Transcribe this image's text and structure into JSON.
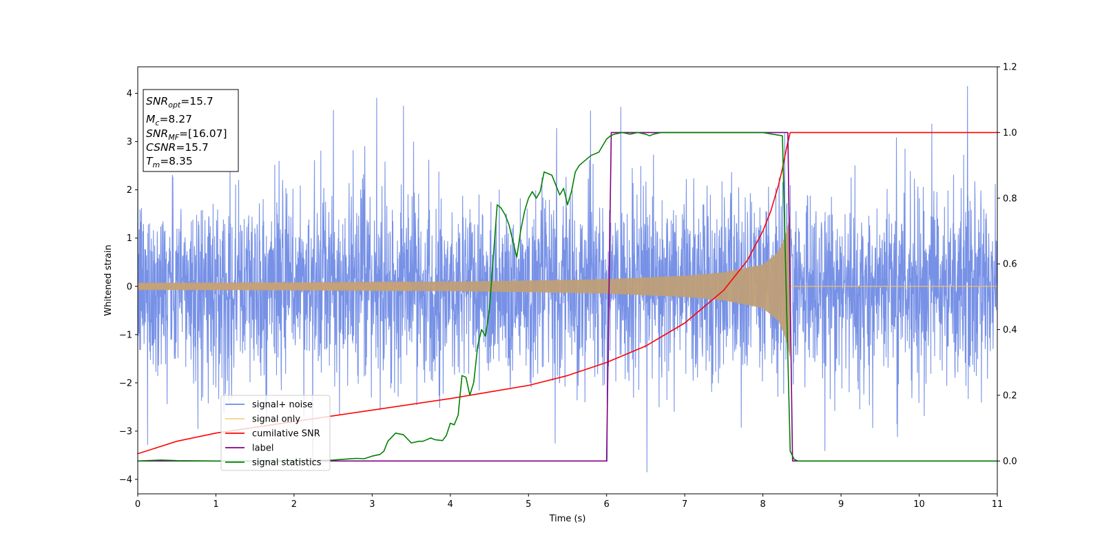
{
  "chart_data": {
    "type": "line",
    "xlabel": "Time (s)",
    "ylabel": "Whitened strain",
    "xlim": [
      0,
      11
    ],
    "ylim": [
      -4.3,
      4.55
    ],
    "y2lim": [
      -0.1,
      1.2
    ],
    "x_ticks": [
      0,
      1,
      2,
      3,
      4,
      5,
      6,
      7,
      8,
      9,
      10,
      11
    ],
    "y_ticks": [
      -4,
      -3,
      -2,
      -1,
      0,
      1,
      2,
      3,
      4
    ],
    "y_tick_labels": [
      "−4",
      "−3",
      "−2",
      "−1",
      "0",
      "1",
      "2",
      "3",
      "4"
    ],
    "y2_ticks": [
      0.0,
      0.2,
      0.4,
      0.6,
      0.8,
      1.0,
      1.2
    ],
    "y2_tick_labels": [
      "0.0",
      "0.2",
      "0.4",
      "0.6",
      "0.8",
      "1.0",
      "1.2"
    ],
    "annotation": [
      {
        "base": "SNR",
        "sub": "opt",
        "rest": "=15.7"
      },
      {
        "base": "M",
        "sub": "c",
        "rest": "=8.27"
      },
      {
        "base": "SNR",
        "sub": "MF",
        "rest": "=[16.07]"
      },
      {
        "base": "CSNR",
        "sub": "",
        "rest": "=15.7"
      },
      {
        "base": "T",
        "sub": "m",
        "rest": "=8.35"
      }
    ],
    "legend_position": "lower-left",
    "merger_time": 8.35,
    "series": [
      {
        "name": "signal+ noise",
        "color": "#6b88e4",
        "axis": "left",
        "kind": "noise",
        "description_values": {
          "typical_abs_max": 2.5,
          "peak_max": 4.15,
          "peak_min": -3.85
        }
      },
      {
        "name": "signal only",
        "color": "#f5c060",
        "axis": "left",
        "kind": "chirp",
        "envelope": {
          "x": [
            0,
            2,
            4,
            5,
            6,
            7,
            7.5,
            8,
            8.2,
            8.3,
            8.35
          ],
          "y": [
            0.07,
            0.08,
            0.1,
            0.12,
            0.15,
            0.22,
            0.29,
            0.45,
            0.72,
            1.1,
            1.5
          ]
        }
      },
      {
        "name": "cumilative SNR",
        "color": "#ff0000",
        "axis": "right",
        "x": [
          0,
          0.5,
          1,
          2,
          3,
          4,
          5,
          5.5,
          6,
          6.5,
          7,
          7.5,
          7.8,
          8.0,
          8.1,
          8.2,
          8.25,
          8.3,
          8.35,
          11
        ],
        "y": [
          0.022,
          0.06,
          0.085,
          0.12,
          0.155,
          0.19,
          0.23,
          0.26,
          0.3,
          0.35,
          0.42,
          0.52,
          0.61,
          0.7,
          0.76,
          0.84,
          0.89,
          0.95,
          1.0,
          1.0
        ]
      },
      {
        "name": "label",
        "color": "#800080",
        "axis": "right",
        "x": [
          0,
          6.0,
          6.06,
          8.32,
          8.38,
          11
        ],
        "y": [
          0,
          0,
          1,
          1,
          0,
          0
        ]
      },
      {
        "name": "signal statistics",
        "color": "#008000",
        "axis": "right",
        "x": [
          0,
          0.3,
          0.5,
          1,
          2,
          2.5,
          2.8,
          2.9,
          3.0,
          3.1,
          3.15,
          3.2,
          3.3,
          3.4,
          3.5,
          3.6,
          3.65,
          3.7,
          3.75,
          3.8,
          3.9,
          3.95,
          4.0,
          4.05,
          4.1,
          4.15,
          4.2,
          4.25,
          4.3,
          4.35,
          4.4,
          4.45,
          4.5,
          4.55,
          4.6,
          4.65,
          4.7,
          4.75,
          4.85,
          4.9,
          4.95,
          5.0,
          5.05,
          5.1,
          5.15,
          5.2,
          5.3,
          5.35,
          5.4,
          5.45,
          5.5,
          5.55,
          5.6,
          5.65,
          5.7,
          5.8,
          5.9,
          6.0,
          6.05,
          6.1,
          6.2,
          6.3,
          6.4,
          6.5,
          6.55,
          6.6,
          6.7,
          6.8,
          7.0,
          7.5,
          8.0,
          8.25,
          8.3,
          8.35,
          8.4,
          8.45,
          8.5,
          11
        ],
        "y": [
          0,
          0.003,
          0.001,
          0,
          0,
          0.003,
          0.008,
          0.007,
          0.015,
          0.02,
          0.03,
          0.06,
          0.085,
          0.08,
          0.055,
          0.06,
          0.06,
          0.065,
          0.07,
          0.065,
          0.062,
          0.078,
          0.115,
          0.11,
          0.14,
          0.26,
          0.255,
          0.2,
          0.24,
          0.35,
          0.4,
          0.38,
          0.46,
          0.62,
          0.78,
          0.77,
          0.75,
          0.72,
          0.62,
          0.7,
          0.76,
          0.8,
          0.82,
          0.8,
          0.82,
          0.88,
          0.87,
          0.84,
          0.81,
          0.83,
          0.78,
          0.82,
          0.88,
          0.9,
          0.91,
          0.93,
          0.94,
          0.98,
          0.99,
          0.995,
          1.0,
          0.995,
          1.0,
          0.995,
          0.99,
          0.995,
          1.0,
          1.0,
          1.0,
          1.0,
          1.0,
          0.99,
          0.5,
          0.03,
          0.005,
          0,
          0,
          0
        ]
      }
    ]
  }
}
